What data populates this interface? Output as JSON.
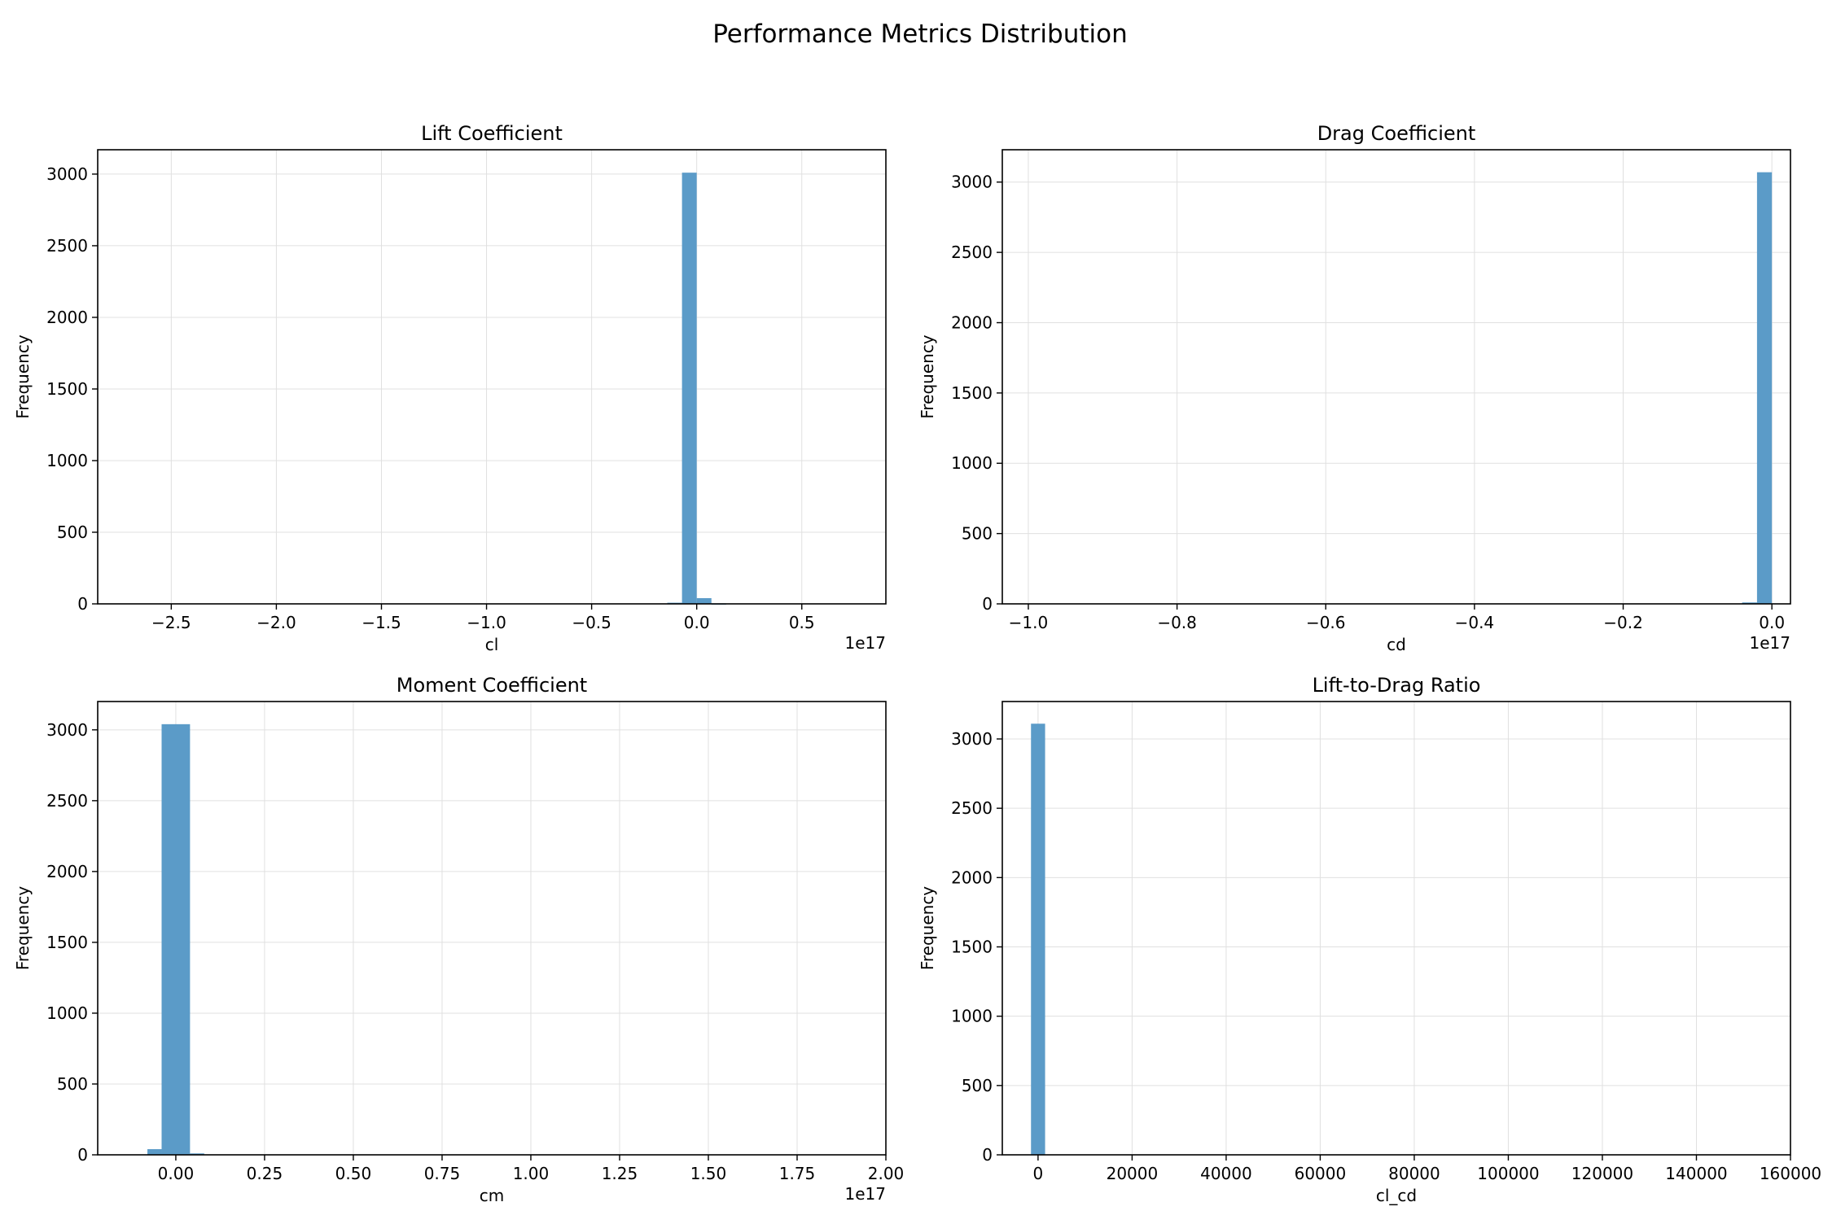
{
  "suptitle": "Performance Metrics Distribution",
  "colors": {
    "bar": "#5b9bc8",
    "grid": "#e0e0e0",
    "axis": "#000000"
  },
  "chart_data": [
    {
      "type": "bar",
      "title": "Lift Coefficient",
      "xlabel": "cl",
      "ylabel": "Frequency",
      "offset_text": "1e17",
      "grid": true,
      "xlim": [
        -2.85,
        0.9
      ],
      "ylim": [
        0,
        3170
      ],
      "xticks": [
        -2.5,
        -2.0,
        -1.5,
        -1.0,
        -0.5,
        0.0,
        0.5
      ],
      "xtick_labels": [
        "−2.5",
        "−2.0",
        "−1.5",
        "−1.0",
        "−0.5",
        "0.0",
        "0.5"
      ],
      "yticks": [
        0,
        500,
        1000,
        1500,
        2000,
        2500,
        3000
      ],
      "yticks_labels": [
        "0",
        "500",
        "1000",
        "1500",
        "2000",
        "2500",
        "3000"
      ],
      "bins": [
        {
          "x0": -0.14,
          "x1": -0.07,
          "count": 8
        },
        {
          "x0": -0.07,
          "x1": 0.0,
          "count": 3010
        },
        {
          "x0": 0.0,
          "x1": 0.07,
          "count": 40
        },
        {
          "x0": 0.07,
          "x1": 0.14,
          "count": 3
        }
      ]
    },
    {
      "type": "bar",
      "title": "Drag Coefficient",
      "xlabel": "cd",
      "ylabel": "Frequency",
      "offset_text": "1e17",
      "grid": true,
      "xlim": [
        -1.035,
        0.025
      ],
      "ylim": [
        0,
        3230
      ],
      "xticks": [
        -1.0,
        -0.8,
        -0.6,
        -0.4,
        -0.2,
        0.0
      ],
      "xtick_labels": [
        "−1.0",
        "−0.8",
        "−0.6",
        "−0.4",
        "−0.2",
        "0.0"
      ],
      "yticks": [
        0,
        500,
        1000,
        1500,
        2000,
        2500,
        3000
      ],
      "yticks_labels": [
        "0",
        "500",
        "1000",
        "1500",
        "2000",
        "2500",
        "3000"
      ],
      "bins": [
        {
          "x0": -0.04,
          "x1": -0.02,
          "count": 10
        },
        {
          "x0": -0.02,
          "x1": 0.0,
          "count": 3070
        }
      ]
    },
    {
      "type": "bar",
      "title": "Moment Coefficient",
      "xlabel": "cm",
      "ylabel": "Frequency",
      "offset_text": "1e17",
      "grid": true,
      "xlim": [
        -0.22,
        2.0
      ],
      "ylim": [
        0,
        3200
      ],
      "xticks": [
        0.0,
        0.25,
        0.5,
        0.75,
        1.0,
        1.25,
        1.5,
        1.75,
        2.0
      ],
      "xtick_labels": [
        "0.00",
        "0.25",
        "0.50",
        "0.75",
        "1.00",
        "1.25",
        "1.50",
        "1.75",
        "2.00"
      ],
      "yticks": [
        0,
        500,
        1000,
        1500,
        2000,
        2500,
        3000
      ],
      "yticks_labels": [
        "0",
        "500",
        "1000",
        "1500",
        "2000",
        "2500",
        "3000"
      ],
      "bins": [
        {
          "x0": -0.08,
          "x1": -0.04,
          "count": 40
        },
        {
          "x0": -0.04,
          "x1": 0.04,
          "count": 3040
        },
        {
          "x0": 0.04,
          "x1": 0.08,
          "count": 10
        }
      ]
    },
    {
      "type": "bar",
      "title": "Lift-to-Drag Ratio",
      "xlabel": "cl_cd",
      "ylabel": "Frequency",
      "offset_text": "",
      "grid": true,
      "xlim": [
        -7600,
        160000
      ],
      "ylim": [
        0,
        3270
      ],
      "xticks": [
        0,
        20000,
        40000,
        60000,
        80000,
        100000,
        120000,
        140000,
        160000
      ],
      "xtick_labels": [
        "0",
        "20000",
        "40000",
        "60000",
        "80000",
        "100000",
        "120000",
        "140000",
        "160000"
      ],
      "yticks": [
        0,
        500,
        1000,
        1500,
        2000,
        2500,
        3000
      ],
      "yticks_labels": [
        "0",
        "500",
        "1000",
        "1500",
        "2000",
        "2500",
        "3000"
      ],
      "bins": [
        {
          "x0": -1500,
          "x1": 1500,
          "count": 3110
        }
      ]
    }
  ]
}
